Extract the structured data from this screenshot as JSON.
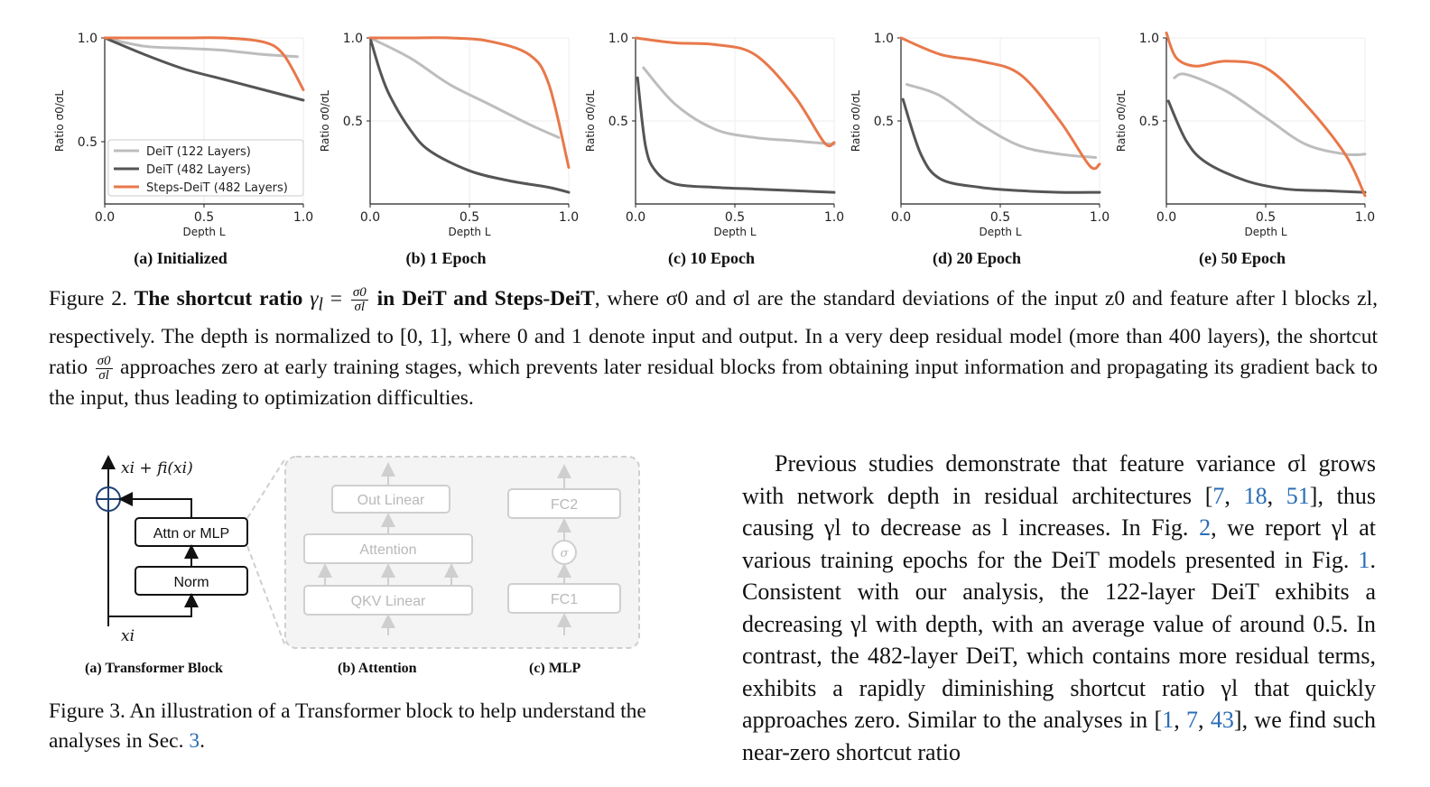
{
  "figure2": {
    "plots": [
      {
        "label": "(a) Initialized"
      },
      {
        "label": "(b) 1 Epoch"
      },
      {
        "label": "(c) 10 Epoch"
      },
      {
        "label": "(d) 20 Epoch"
      },
      {
        "label": "(e) 50 Epoch"
      }
    ],
    "caption_prefix": "Figure 2.",
    "caption_bold": "The shortcut ratio",
    "caption_bold_math": "γ",
    "caption_bold_math_sub": "l",
    "caption_bold_eq": "=",
    "caption_frac_num": "σ0",
    "caption_frac_den": "σl",
    "caption_bold_tail": "in DeiT and Steps-DeiT",
    "caption_rest": ", where σ0 and σl are the standard deviations of the input z0 and feature after l blocks zl, respectively. The depth is normalized to [0, 1], where 0 and 1 denote input and output. In a very deep residual model (more than 400 layers), the shortcut ratio",
    "caption_frac2_num": "σ0",
    "caption_frac2_den": "σl",
    "caption_end": "approaches zero at early training stages, which prevents later residual blocks from obtaining input information and propagating its gradient back to the input, thus leading to optimization difficulties."
  },
  "figure3": {
    "out_label": "xi + fi(xi)",
    "in_label": "xi",
    "attn_mlp": "Attn or MLP",
    "norm": "Norm",
    "out_linear": "Out Linear",
    "attention": "Attention",
    "qkv_linear": "QKV Linear",
    "fc2": "FC2",
    "fc1": "FC1",
    "sigma": "σ",
    "sub_a": "(a) Transformer Block",
    "sub_b": "(b) Attention",
    "sub_c": "(c) MLP",
    "caption": "Figure 3. An illustration of a Transformer block to help understand the analyses in Sec.",
    "caption_ref": "3",
    "caption_end": "."
  },
  "body": {
    "text_1": "Previous studies demonstrate that feature variance σl grows with network depth in residual architectures [",
    "ref_7": "7",
    "sep": ", ",
    "ref_18": "18",
    "ref_51": "51",
    "text_2": "], thus causing γl to decrease as l increases. In Fig. ",
    "ref_fig2": "2",
    "text_3": ", we report γl at various training epochs for the DeiT models presented in Fig. ",
    "ref_fig1": "1",
    "text_4": ". Consistent with our analysis, the 122-layer DeiT exhibits a decreasing γl with depth, with an average value of around 0.5. In contrast, the 482-layer DeiT, which contains more residual terms, exhibits a rapidly diminishing shortcut ratio γl that quickly approaches zero. Similar to the analyses in [",
    "ref_1": "1",
    "ref_7b": "7",
    "ref_43": "43",
    "text_5": "], we find such near-zero shortcut ratio"
  },
  "chart_data": [
    {
      "type": "line",
      "title": "(a) Initialized",
      "xlabel": "Depth L",
      "ylabel": "Ratio σ0/σL",
      "xlim": [
        0,
        1
      ],
      "ylim": [
        0.2,
        1.0
      ],
      "yticks": [
        0.5,
        1.0
      ],
      "xticks": [
        0.0,
        0.5,
        1.0
      ],
      "legend": {
        "placement": "lower-left",
        "entries": [
          "DeiT (122 Layers)",
          "DeiT (482 Layers)",
          "Steps-DeiT (482 Layers)"
        ]
      },
      "series": [
        {
          "name": "DeiT (122 Layers)",
          "color": "#bdbdbd",
          "x": [
            0,
            0.2,
            0.4,
            0.6,
            0.8,
            0.97
          ],
          "y": [
            1.0,
            0.96,
            0.95,
            0.94,
            0.92,
            0.91
          ]
        },
        {
          "name": "DeiT (482 Layers)",
          "color": "#555555",
          "x": [
            0,
            0.2,
            0.4,
            0.6,
            0.8,
            1.0
          ],
          "y": [
            1.0,
            0.92,
            0.85,
            0.8,
            0.75,
            0.7
          ]
        },
        {
          "name": "Steps-DeiT (482 Layers)",
          "color": "#e8784a",
          "x": [
            0,
            0.2,
            0.4,
            0.6,
            0.8,
            0.9,
            1.0
          ],
          "y": [
            1.0,
            1.0,
            1.0,
            1.0,
            0.98,
            0.92,
            0.75
          ]
        }
      ]
    },
    {
      "type": "line",
      "title": "(b) 1 Epoch",
      "xlabel": "Depth L",
      "ylabel": "Ratio σ0/σL",
      "xlim": [
        0,
        1
      ],
      "ylim": [
        0.0,
        1.0
      ],
      "yticks": [
        0.5,
        1.0
      ],
      "xticks": [
        0.0,
        0.5,
        1.0
      ],
      "series": [
        {
          "name": "DeiT (122 Layers)",
          "color": "#bdbdbd",
          "x": [
            0,
            0.2,
            0.4,
            0.6,
            0.8,
            0.95
          ],
          "y": [
            1.0,
            0.88,
            0.72,
            0.6,
            0.48,
            0.4
          ]
        },
        {
          "name": "DeiT (482 Layers)",
          "color": "#555555",
          "x": [
            0,
            0.05,
            0.1,
            0.2,
            0.3,
            0.5,
            0.7,
            0.9,
            1.0
          ],
          "y": [
            1.0,
            0.8,
            0.65,
            0.45,
            0.32,
            0.2,
            0.14,
            0.1,
            0.07
          ]
        },
        {
          "name": "Steps-DeiT (482 Layers)",
          "color": "#e8784a",
          "x": [
            0,
            0.2,
            0.4,
            0.6,
            0.8,
            0.9,
            1.0
          ],
          "y": [
            1.0,
            1.0,
            1.0,
            0.98,
            0.9,
            0.72,
            0.22
          ]
        }
      ]
    },
    {
      "type": "line",
      "title": "(c) 10 Epoch",
      "xlabel": "Depth L",
      "ylabel": "Ratio σ0/σL",
      "xlim": [
        0,
        1
      ],
      "ylim": [
        0.0,
        1.0
      ],
      "yticks": [
        0.5,
        1.0
      ],
      "xticks": [
        0.0,
        0.5,
        1.0
      ],
      "series": [
        {
          "name": "DeiT (122 Layers)",
          "color": "#bdbdbd",
          "x": [
            0.04,
            0.2,
            0.4,
            0.6,
            0.8,
            1.0
          ],
          "y": [
            0.82,
            0.6,
            0.45,
            0.4,
            0.38,
            0.36
          ]
        },
        {
          "name": "DeiT (482 Layers)",
          "color": "#555555",
          "x": [
            0.01,
            0.05,
            0.1,
            0.2,
            0.4,
            0.6,
            0.8,
            1.0
          ],
          "y": [
            0.76,
            0.35,
            0.2,
            0.12,
            0.1,
            0.09,
            0.08,
            0.07
          ]
        },
        {
          "name": "Steps-DeiT (482 Layers)",
          "color": "#e8784a",
          "x": [
            0,
            0.2,
            0.4,
            0.6,
            0.8,
            0.95,
            1.0
          ],
          "y": [
            1.0,
            0.97,
            0.96,
            0.9,
            0.65,
            0.37,
            0.37
          ]
        }
      ]
    },
    {
      "type": "line",
      "title": "(d) 20 Epoch",
      "xlabel": "Depth L",
      "ylabel": "Ratio σ0/σL",
      "xlim": [
        0,
        1
      ],
      "ylim": [
        0.0,
        1.0
      ],
      "yticks": [
        0.5,
        1.0
      ],
      "xticks": [
        0.0,
        0.5,
        1.0
      ],
      "series": [
        {
          "name": "DeiT (122 Layers)",
          "color": "#bdbdbd",
          "x": [
            0.03,
            0.2,
            0.4,
            0.6,
            0.8,
            0.98
          ],
          "y": [
            0.72,
            0.65,
            0.48,
            0.35,
            0.3,
            0.28
          ]
        },
        {
          "name": "DeiT (482 Layers)",
          "color": "#555555",
          "x": [
            0.01,
            0.1,
            0.2,
            0.4,
            0.6,
            0.8,
            1.0
          ],
          "y": [
            0.63,
            0.3,
            0.15,
            0.1,
            0.08,
            0.07,
            0.07
          ]
        },
        {
          "name": "Steps-DeiT (482 Layers)",
          "color": "#e8784a",
          "x": [
            0,
            0.2,
            0.4,
            0.6,
            0.8,
            0.95,
            1.0
          ],
          "y": [
            1.0,
            0.9,
            0.86,
            0.78,
            0.5,
            0.23,
            0.24
          ]
        }
      ]
    },
    {
      "type": "line",
      "title": "(e) 50 Epoch",
      "xlabel": "Depth L",
      "ylabel": "Ratio σ0/σL",
      "xlim": [
        0,
        1
      ],
      "ylim": [
        0.0,
        1.0
      ],
      "yticks": [
        0.5,
        1.0
      ],
      "xticks": [
        0.0,
        0.5,
        1.0
      ],
      "series": [
        {
          "name": "DeiT (122 Layers)",
          "color": "#bdbdbd",
          "x": [
            0.04,
            0.1,
            0.3,
            0.5,
            0.7,
            0.9,
            1.0
          ],
          "y": [
            0.76,
            0.78,
            0.68,
            0.52,
            0.36,
            0.3,
            0.3
          ]
        },
        {
          "name": "DeiT (482 Layers)",
          "color": "#555555",
          "x": [
            0.01,
            0.1,
            0.2,
            0.4,
            0.6,
            0.8,
            1.0
          ],
          "y": [
            0.62,
            0.38,
            0.25,
            0.14,
            0.09,
            0.08,
            0.07
          ]
        },
        {
          "name": "Steps-DeiT (482 Layers)",
          "color": "#e8784a",
          "x": [
            0,
            0.05,
            0.15,
            0.3,
            0.5,
            0.7,
            0.9,
            1.0
          ],
          "y": [
            1.03,
            0.88,
            0.83,
            0.86,
            0.82,
            0.6,
            0.3,
            0.05
          ]
        }
      ]
    }
  ]
}
